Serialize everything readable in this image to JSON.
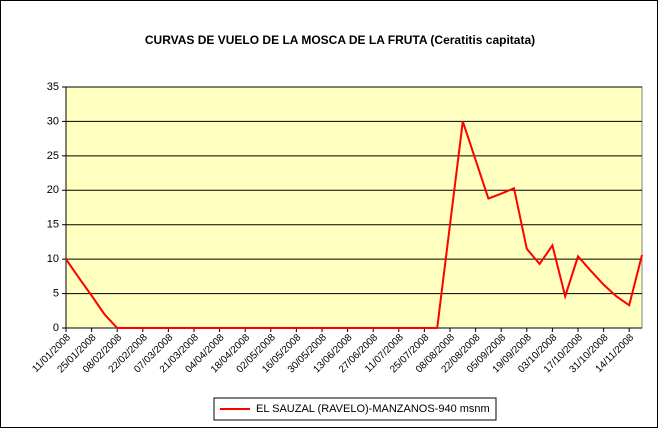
{
  "chart_data": {
    "type": "line",
    "title": "CURVAS DE VUELO DE LA MOSCA DE LA FRUTA (Ceratitis capitata)",
    "categories": [
      "11/01/2008",
      null,
      "25/01/2008",
      null,
      "08/02/2008",
      null,
      "22/02/2008",
      null,
      "07/03/2008",
      null,
      "21/03/2008",
      null,
      "04/04/2008",
      null,
      "18/04/2008",
      null,
      "02/05/2008",
      null,
      "16/05/2008",
      null,
      "30/05/2008",
      null,
      "13/06/2008",
      null,
      "27/06/2008",
      null,
      "11/07/2008",
      null,
      "25/07/2008",
      null,
      "08/08/2008",
      null,
      "22/08/2008",
      null,
      "05/09/2008",
      null,
      "19/09/2008",
      null,
      "03/10/2008",
      null,
      "17/10/2008",
      null,
      "31/10/2008",
      null,
      "14/11/2008",
      null
    ],
    "series": [
      {
        "name": "EL SAUZAL (RAVELO)-MANZANOS-940 msnm",
        "color": "#ff0000",
        "values": [
          10,
          7.3,
          4.7,
          2,
          0,
          0,
          0,
          0,
          0,
          0,
          0,
          0,
          0,
          0,
          0,
          0,
          0,
          0,
          0,
          0,
          0,
          0,
          0,
          0,
          0,
          0,
          0,
          0,
          0,
          0,
          15,
          30,
          24.4,
          18.8,
          19.5,
          20.3,
          11.5,
          9.3,
          12,
          4.6,
          10.4,
          8.3,
          6.3,
          4.6,
          3.3,
          10.6
        ]
      }
    ],
    "ylim": [
      0,
      35
    ],
    "yticks": [
      0,
      5,
      10,
      15,
      20,
      25,
      30,
      35
    ],
    "grid": true,
    "legend": "bottom",
    "background": "#ffffc0"
  }
}
